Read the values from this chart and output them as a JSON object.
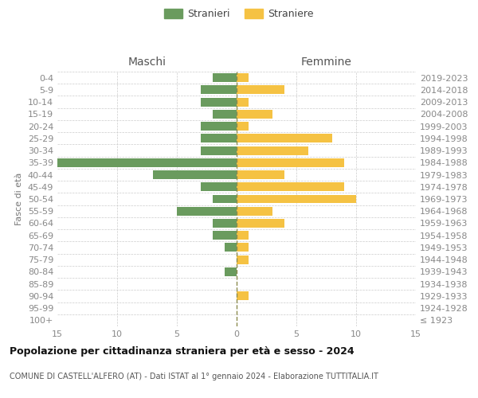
{
  "age_groups": [
    "100+",
    "95-99",
    "90-94",
    "85-89",
    "80-84",
    "75-79",
    "70-74",
    "65-69",
    "60-64",
    "55-59",
    "50-54",
    "45-49",
    "40-44",
    "35-39",
    "30-34",
    "25-29",
    "20-24",
    "15-19",
    "10-14",
    "5-9",
    "0-4"
  ],
  "birth_years": [
    "≤ 1923",
    "1924-1928",
    "1929-1933",
    "1934-1938",
    "1939-1943",
    "1944-1948",
    "1949-1953",
    "1954-1958",
    "1959-1963",
    "1964-1968",
    "1969-1973",
    "1974-1978",
    "1979-1983",
    "1984-1988",
    "1989-1993",
    "1994-1998",
    "1999-2003",
    "2004-2008",
    "2009-2013",
    "2014-2018",
    "2019-2023"
  ],
  "maschi": [
    0,
    0,
    0,
    0,
    1,
    0,
    1,
    2,
    2,
    5,
    2,
    3,
    7,
    15,
    3,
    3,
    3,
    2,
    3,
    3,
    2
  ],
  "femmine": [
    0,
    0,
    1,
    0,
    0,
    1,
    1,
    1,
    4,
    3,
    10,
    9,
    4,
    9,
    6,
    8,
    1,
    3,
    1,
    4,
    1
  ],
  "male_color": "#6a9b5e",
  "female_color": "#f5c243",
  "background_color": "#ffffff",
  "grid_color": "#cccccc",
  "center_line_color": "#8b8b4e",
  "title": "Popolazione per cittadinanza straniera per età e sesso - 2024",
  "subtitle": "COMUNE DI CASTELL'ALFERO (AT) - Dati ISTAT al 1° gennaio 2024 - Elaborazione TUTTITALIA.IT",
  "header_left": "Maschi",
  "header_right": "Femmine",
  "ylabel_left": "Fasce di età",
  "legend_male": "Stranieri",
  "legend_female": "Straniere",
  "xlim": 15,
  "tick_fontsize": 8,
  "label_fontsize": 8,
  "header_fontsize": 10,
  "title_fontsize": 9,
  "subtitle_fontsize": 7,
  "legend_fontsize": 9,
  "tick_color": "#888888",
  "label_color": "#777777",
  "header_color": "#555555",
  "title_color": "#111111",
  "subtitle_color": "#555555"
}
